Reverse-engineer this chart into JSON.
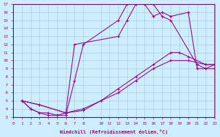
{
  "xlabel": "Windchill (Refroidissement éolien,°C)",
  "bg_color": "#cceeff",
  "line_color": "#990099",
  "grid_color": "#aaccdd",
  "xlim": [
    0,
    23
  ],
  "ylim": [
    3,
    17
  ],
  "xticks": [
    0,
    1,
    2,
    3,
    4,
    5,
    6,
    7,
    8,
    10,
    11,
    12,
    13,
    14,
    15,
    16,
    17,
    18,
    19,
    20,
    21,
    22,
    23
  ],
  "yticks": [
    3,
    4,
    5,
    6,
    7,
    8,
    9,
    10,
    11,
    12,
    13,
    14,
    15,
    16,
    17
  ],
  "series": [
    {
      "x": [
        1,
        2,
        3,
        4,
        5,
        6,
        7,
        8,
        12,
        13,
        14,
        15,
        16,
        17,
        18,
        20,
        21,
        22,
        23
      ],
      "y": [
        5,
        4,
        3.5,
        3.2,
        3.2,
        3.2,
        7.5,
        12,
        15,
        17,
        17,
        17,
        15.5,
        16,
        15.5,
        16,
        9,
        9,
        9.5
      ]
    },
    {
      "x": [
        1,
        2,
        3,
        4,
        5,
        6,
        7,
        12,
        13,
        14,
        15,
        16,
        17,
        18,
        21,
        22,
        23
      ],
      "y": [
        5,
        4,
        3.5,
        3.5,
        3.2,
        3.5,
        12,
        13,
        15,
        17,
        17,
        17,
        15.5,
        15,
        9.5,
        9,
        9
      ]
    },
    {
      "x": [
        1,
        3,
        6,
        8,
        10,
        12,
        14,
        16,
        18,
        19,
        20,
        22,
        23
      ],
      "y": [
        5,
        4.5,
        3.5,
        4,
        5,
        6.5,
        8,
        9.5,
        11,
        11,
        10.5,
        9.5,
        9.5
      ]
    },
    {
      "x": [
        1,
        3,
        6,
        8,
        10,
        12,
        14,
        16,
        18,
        20,
        22,
        23
      ],
      "y": [
        5,
        4.5,
        3.5,
        3.8,
        5,
        6,
        7.5,
        9,
        10,
        10,
        9.5,
        9.5
      ]
    }
  ]
}
